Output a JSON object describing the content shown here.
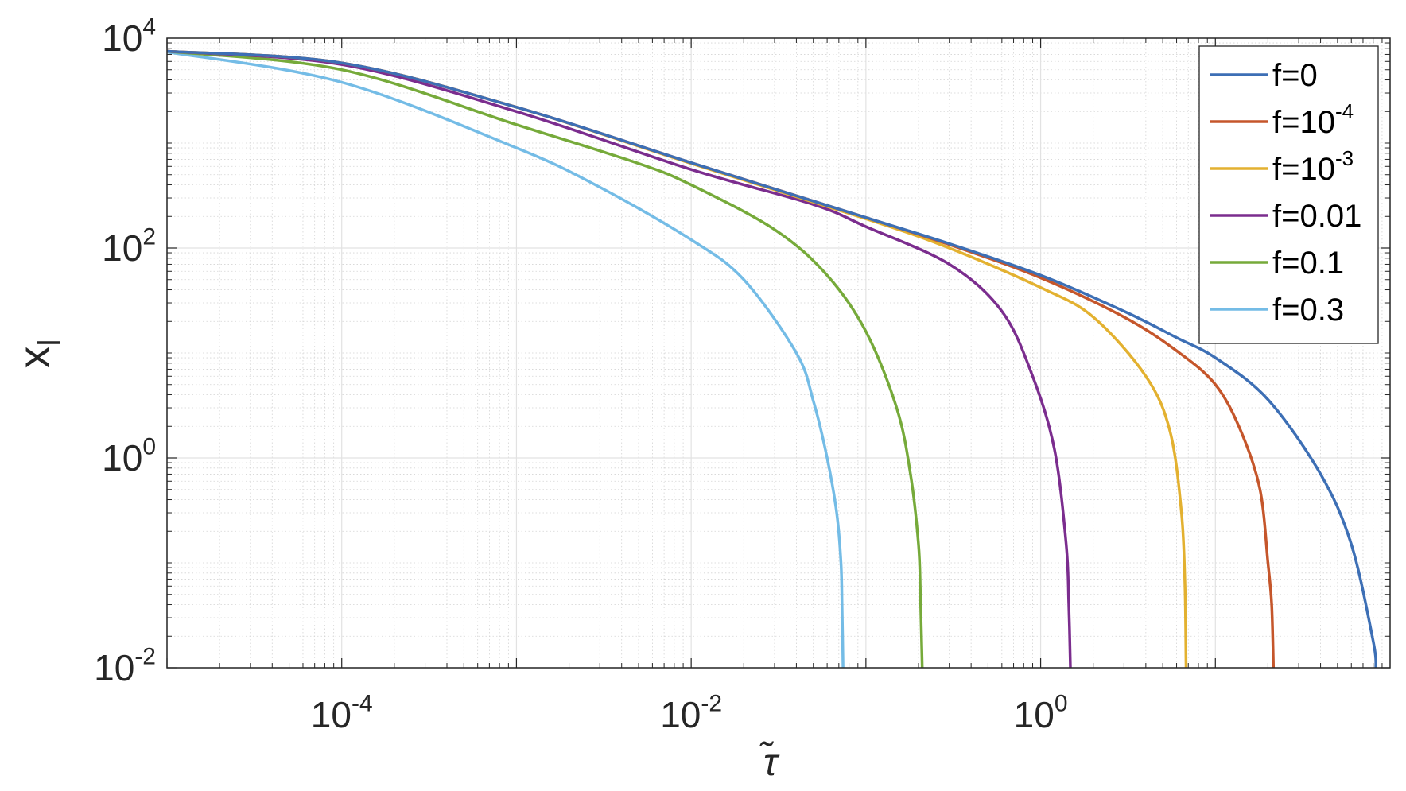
{
  "chart_data": {
    "type": "line",
    "xlabel": "τ̃",
    "ylabel": "x_l",
    "xscale": "log",
    "yscale": "log",
    "xlim": [
      1e-05,
      100
    ],
    "ylim": [
      0.01,
      10000
    ],
    "grid": true,
    "minor_grid": true,
    "legend_position": "top-right",
    "x_ticks": [
      {
        "value": 0.0001,
        "base": "10",
        "exp": "-4"
      },
      {
        "value": 0.01,
        "base": "10",
        "exp": "-2"
      },
      {
        "value": 1,
        "base": "10",
        "exp": "0"
      }
    ],
    "y_ticks": [
      {
        "value": 0.01,
        "base": "10",
        "exp": "-2"
      },
      {
        "value": 1,
        "base": "10",
        "exp": "0"
      },
      {
        "value": 100,
        "base": "10",
        "exp": "2"
      },
      {
        "value": 10000,
        "base": "10",
        "exp": "4"
      }
    ],
    "series": [
      {
        "name": "f=0",
        "label_base": "f=0",
        "label_exp": "",
        "color": "#3d6fb5",
        "points": [
          [
            1e-05,
            7500
          ],
          [
            0.0001,
            5800
          ],
          [
            0.001,
            2200
          ],
          [
            0.01,
            650
          ],
          [
            0.1,
            195
          ],
          [
            0.3,
            110
          ],
          [
            1,
            55
          ],
          [
            3,
            25
          ],
          [
            6,
            14
          ],
          [
            10,
            9
          ],
          [
            20,
            3.6
          ],
          [
            40,
            0.7
          ],
          [
            60,
            0.15
          ],
          [
            80,
            0.018
          ],
          [
            83,
            0.01
          ]
        ]
      },
      {
        "name": "f=10^-4",
        "label_base": "f=10",
        "label_exp": "-4",
        "color": "#c5562b",
        "points": [
          [
            1e-05,
            7500
          ],
          [
            0.0001,
            5800
          ],
          [
            0.001,
            2200
          ],
          [
            0.01,
            650
          ],
          [
            0.1,
            195
          ],
          [
            0.3,
            108
          ],
          [
            1,
            52
          ],
          [
            3,
            22
          ],
          [
            6,
            10.5
          ],
          [
            10,
            5
          ],
          [
            14,
            1.8
          ],
          [
            18,
            0.5
          ],
          [
            20,
            0.1
          ],
          [
            21,
            0.04
          ],
          [
            21.5,
            0.01
          ]
        ]
      },
      {
        "name": "f=10^-3",
        "label_base": "f=10",
        "label_exp": "-3",
        "color": "#e3b130",
        "points": [
          [
            1e-05,
            7500
          ],
          [
            0.0001,
            5800
          ],
          [
            0.001,
            2200
          ],
          [
            0.01,
            640
          ],
          [
            0.1,
            190
          ],
          [
            0.3,
            100
          ],
          [
            1,
            42
          ],
          [
            2,
            22
          ],
          [
            4,
            6
          ],
          [
            5.5,
            1.8
          ],
          [
            6.4,
            0.3
          ],
          [
            6.7,
            0.06
          ],
          [
            6.8,
            0.01
          ]
        ]
      },
      {
        "name": "f=0.01",
        "label_base": "f=0.01",
        "label_exp": "",
        "color": "#7b2d8e",
        "points": [
          [
            1e-05,
            7500
          ],
          [
            0.0001,
            5600
          ],
          [
            0.001,
            2000
          ],
          [
            0.01,
            560
          ],
          [
            0.05,
            260
          ],
          [
            0.1,
            160
          ],
          [
            0.3,
            70
          ],
          [
            0.6,
            25
          ],
          [
            0.9,
            6
          ],
          [
            1.2,
            1.2
          ],
          [
            1.4,
            0.15
          ],
          [
            1.45,
            0.04
          ],
          [
            1.48,
            0.01
          ]
        ]
      },
      {
        "name": "f=0.1",
        "label_base": "f=0.1",
        "label_exp": "",
        "color": "#76aa3a",
        "points": [
          [
            1e-05,
            7500
          ],
          [
            0.0001,
            5000
          ],
          [
            0.001,
            1500
          ],
          [
            0.005,
            640
          ],
          [
            0.01,
            400
          ],
          [
            0.03,
            150
          ],
          [
            0.06,
            55
          ],
          [
            0.1,
            16
          ],
          [
            0.15,
            3
          ],
          [
            0.18,
            0.7
          ],
          [
            0.2,
            0.15
          ],
          [
            0.205,
            0.05
          ],
          [
            0.21,
            0.01
          ]
        ]
      },
      {
        "name": "f=0.3",
        "label_base": "f=0.3",
        "label_exp": "",
        "color": "#74bce6",
        "points": [
          [
            1e-05,
            7400
          ],
          [
            0.0001,
            3800
          ],
          [
            0.001,
            900
          ],
          [
            0.003,
            380
          ],
          [
            0.01,
            120
          ],
          [
            0.02,
            50
          ],
          [
            0.04,
            10
          ],
          [
            0.05,
            3.5
          ],
          [
            0.06,
            1
          ],
          [
            0.068,
            0.3
          ],
          [
            0.072,
            0.1
          ],
          [
            0.073,
            0.04
          ],
          [
            0.074,
            0.01
          ]
        ]
      }
    ]
  }
}
